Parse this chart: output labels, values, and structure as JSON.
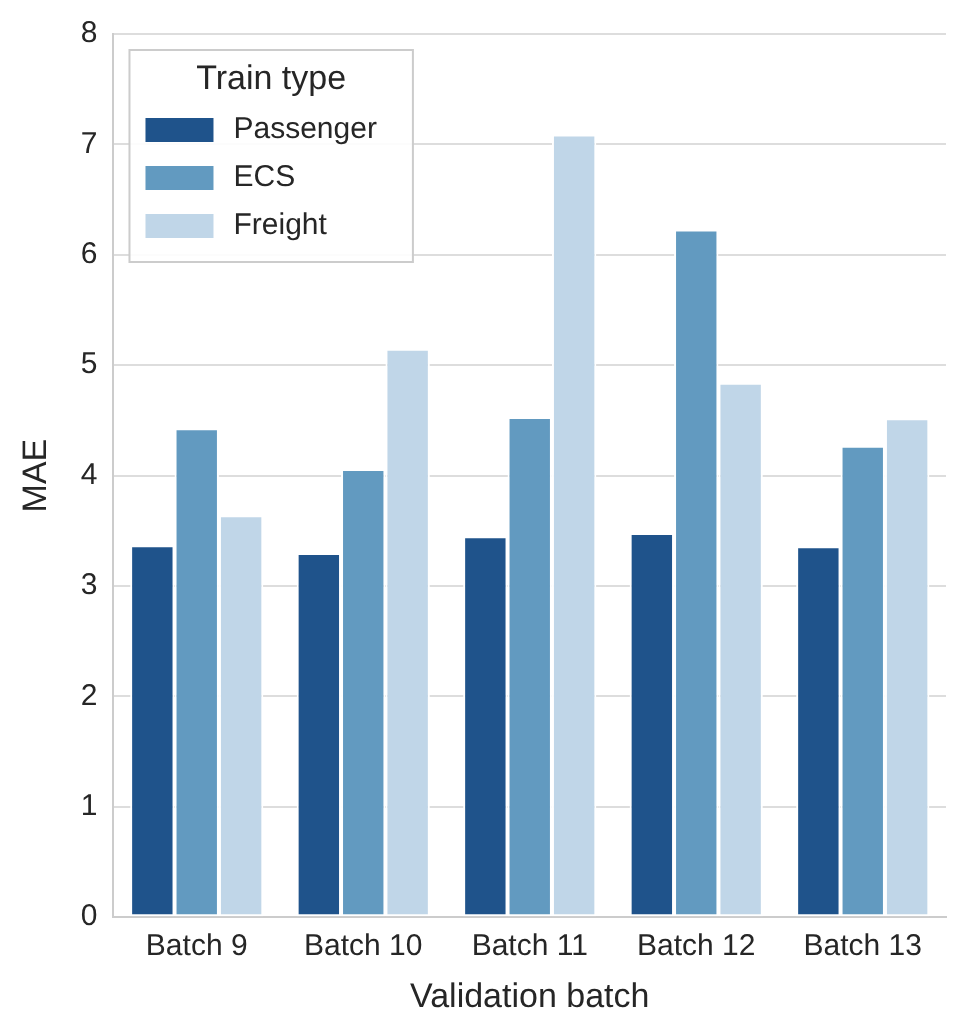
{
  "chart_data": {
    "type": "bar",
    "xlabel": "Validation batch",
    "ylabel": "MAE",
    "legend_title": "Train type",
    "categories": [
      "Batch 9",
      "Batch 10",
      "Batch 11",
      "Batch 12",
      "Batch 13"
    ],
    "series": [
      {
        "name": "Passenger",
        "color": "#1f538b",
        "values": [
          3.37,
          3.3,
          3.45,
          3.48,
          3.36
        ]
      },
      {
        "name": "ECS",
        "color": "#629ac0",
        "values": [
          4.43,
          4.06,
          4.53,
          6.23,
          4.27
        ]
      },
      {
        "name": "Freight",
        "color": "#c0d6e8",
        "values": [
          3.64,
          5.15,
          7.09,
          4.84,
          4.52
        ]
      }
    ],
    "ylim": [
      0,
      8
    ],
    "yticks": [
      0,
      1,
      2,
      3,
      4,
      5,
      6,
      7,
      8
    ],
    "grid": "y",
    "legend": "top left"
  }
}
